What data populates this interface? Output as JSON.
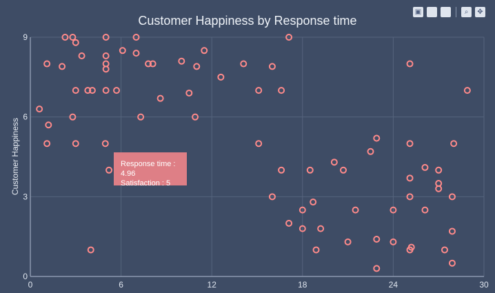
{
  "chart_data": {
    "type": "scatter",
    "title": "Customer Happiness by Response time",
    "xlabel": "",
    "ylabel": "Customer Happiness",
    "xlim": [
      0,
      30
    ],
    "ylim": [
      0,
      9
    ],
    "xticks": [
      0,
      6,
      12,
      18,
      24,
      30
    ],
    "yticks": [
      0,
      3,
      6,
      9
    ],
    "grid": true,
    "marker_color": "#ff8a8a",
    "points": [
      {
        "x": 0.6,
        "y": 6.3
      },
      {
        "x": 1.1,
        "y": 8.0
      },
      {
        "x": 1.2,
        "y": 5.7
      },
      {
        "x": 1.1,
        "y": 5.0
      },
      {
        "x": 2.1,
        "y": 7.9
      },
      {
        "x": 2.3,
        "y": 9.0
      },
      {
        "x": 2.8,
        "y": 9.0
      },
      {
        "x": 3.0,
        "y": 8.8
      },
      {
        "x": 3.4,
        "y": 8.3
      },
      {
        "x": 2.8,
        "y": 6.0
      },
      {
        "x": 3.0,
        "y": 7.0
      },
      {
        "x": 3.0,
        "y": 5.0
      },
      {
        "x": 3.8,
        "y": 7.0
      },
      {
        "x": 4.1,
        "y": 7.0
      },
      {
        "x": 4.0,
        "y": 1.0
      },
      {
        "x": 5.0,
        "y": 9.0
      },
      {
        "x": 5.0,
        "y": 8.3
      },
      {
        "x": 5.0,
        "y": 8.0
      },
      {
        "x": 5.0,
        "y": 7.8
      },
      {
        "x": 5.0,
        "y": 7.0
      },
      {
        "x": 4.96,
        "y": 5.0
      },
      {
        "x": 5.2,
        "y": 4.0
      },
      {
        "x": 5.7,
        "y": 7.0
      },
      {
        "x": 6.1,
        "y": 8.5
      },
      {
        "x": 7.0,
        "y": 9.0
      },
      {
        "x": 7.0,
        "y": 8.4
      },
      {
        "x": 7.3,
        "y": 6.0
      },
      {
        "x": 7.8,
        "y": 8.0
      },
      {
        "x": 8.1,
        "y": 8.0
      },
      {
        "x": 8.6,
        "y": 6.7
      },
      {
        "x": 10.0,
        "y": 8.1
      },
      {
        "x": 10.5,
        "y": 6.9
      },
      {
        "x": 11.0,
        "y": 7.9
      },
      {
        "x": 10.9,
        "y": 6.0
      },
      {
        "x": 11.5,
        "y": 8.5
      },
      {
        "x": 12.6,
        "y": 7.5
      },
      {
        "x": 14.1,
        "y": 8.0
      },
      {
        "x": 15.1,
        "y": 7.0
      },
      {
        "x": 15.1,
        "y": 5.0
      },
      {
        "x": 16.0,
        "y": 7.9
      },
      {
        "x": 16.0,
        "y": 3.0
      },
      {
        "x": 16.6,
        "y": 7.0
      },
      {
        "x": 16.6,
        "y": 4.0
      },
      {
        "x": 17.1,
        "y": 2.0
      },
      {
        "x": 17.1,
        "y": 9.0
      },
      {
        "x": 18.0,
        "y": 2.5
      },
      {
        "x": 18.0,
        "y": 1.8
      },
      {
        "x": 18.5,
        "y": 4.0
      },
      {
        "x": 18.7,
        "y": 2.8
      },
      {
        "x": 18.9,
        "y": 1.0
      },
      {
        "x": 19.2,
        "y": 1.8
      },
      {
        "x": 20.1,
        "y": 4.3
      },
      {
        "x": 20.7,
        "y": 4.0
      },
      {
        "x": 21.0,
        "y": 1.3
      },
      {
        "x": 21.5,
        "y": 2.5
      },
      {
        "x": 22.5,
        "y": 4.7
      },
      {
        "x": 22.9,
        "y": 5.2
      },
      {
        "x": 22.9,
        "y": 1.4
      },
      {
        "x": 22.9,
        "y": 0.3
      },
      {
        "x": 24.0,
        "y": 1.3
      },
      {
        "x": 24.0,
        "y": 2.5
      },
      {
        "x": 25.1,
        "y": 8.0
      },
      {
        "x": 25.1,
        "y": 5.0
      },
      {
        "x": 25.1,
        "y": 3.7
      },
      {
        "x": 25.1,
        "y": 3.0
      },
      {
        "x": 25.1,
        "y": 1.0
      },
      {
        "x": 25.2,
        "y": 1.1
      },
      {
        "x": 26.1,
        "y": 2.5
      },
      {
        "x": 26.1,
        "y": 4.1
      },
      {
        "x": 27.0,
        "y": 4.0
      },
      {
        "x": 27.0,
        "y": 3.5
      },
      {
        "x": 27.0,
        "y": 3.3
      },
      {
        "x": 27.4,
        "y": 1.0
      },
      {
        "x": 27.9,
        "y": 3.0
      },
      {
        "x": 27.9,
        "y": 1.7
      },
      {
        "x": 27.9,
        "y": 0.5
      },
      {
        "x": 28.0,
        "y": 5.0
      },
      {
        "x": 28.9,
        "y": 7.0
      }
    ],
    "tooltip": {
      "line1": "Response time : 4.96",
      "line2": "Satisfaction : 5"
    }
  }
}
